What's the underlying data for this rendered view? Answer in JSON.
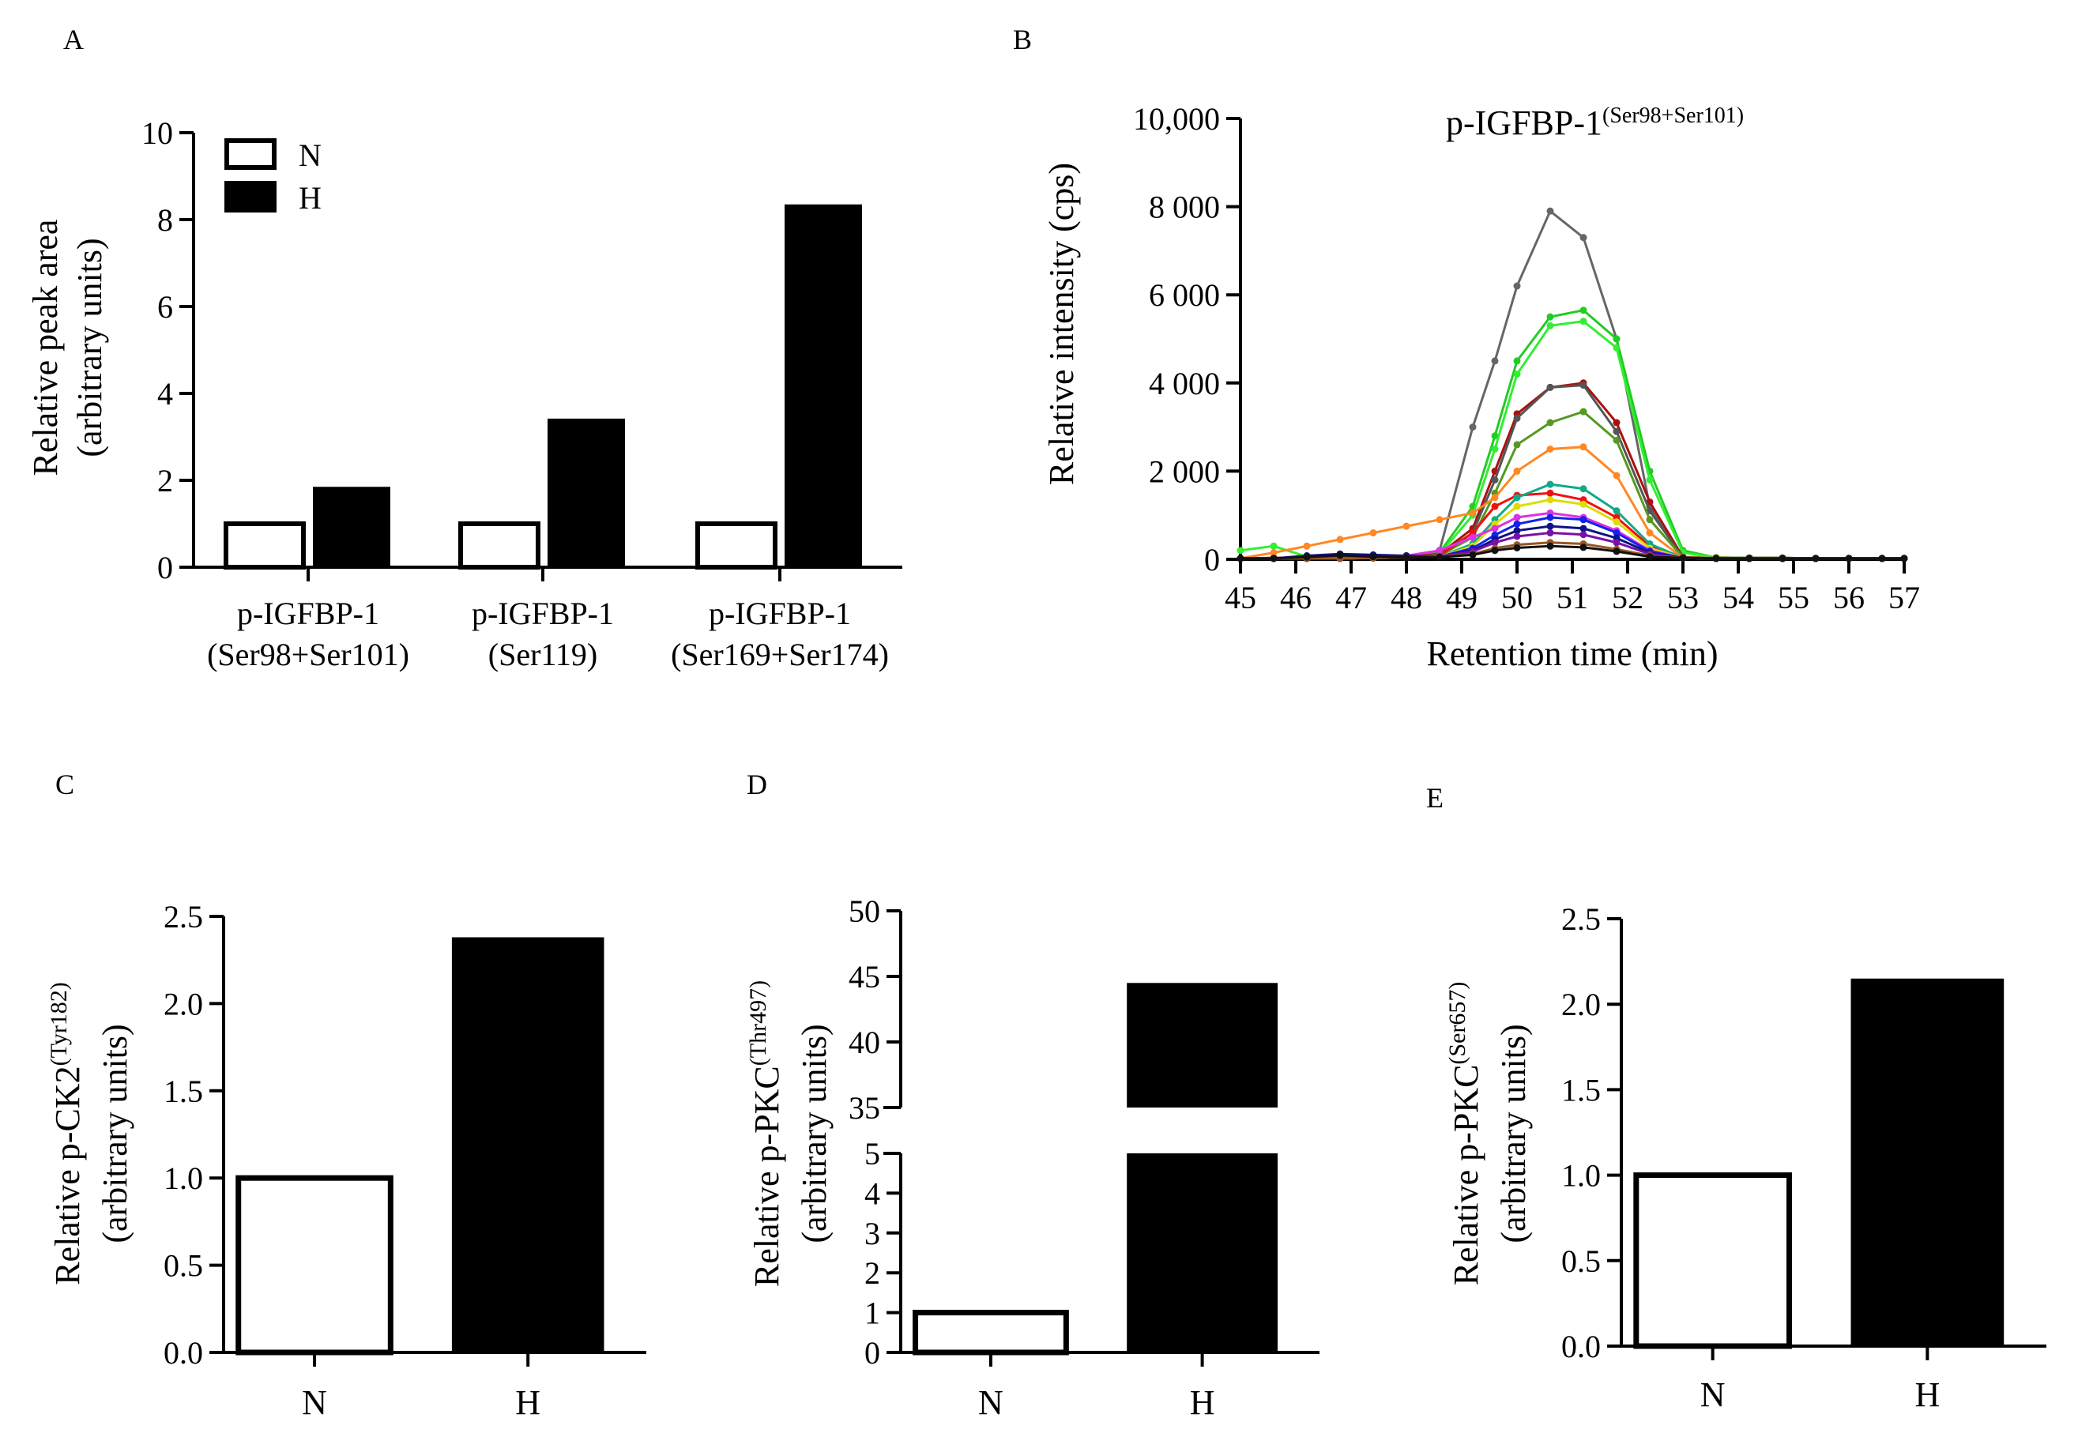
{
  "figure": {
    "panels": {
      "A": "A",
      "B": "B",
      "C": "C",
      "D": "D",
      "E": "E"
    }
  },
  "chart_data": [
    {
      "panel": "A",
      "type": "bar",
      "title": "",
      "categories": [
        [
          "p-IGFBP-1",
          "(Ser98+Ser101)"
        ],
        [
          "p-IGFBP-1",
          "(Ser119)"
        ],
        [
          "p-IGFBP-1",
          "(Ser169+Ser174)"
        ]
      ],
      "series": [
        {
          "name": "N",
          "values": [
            1.0,
            1.0,
            1.0
          ],
          "fill": "#ffffff"
        },
        {
          "name": "H",
          "values": [
            1.85,
            3.42,
            8.35
          ],
          "fill": "#000000"
        }
      ],
      "ylabel": [
        "Relative peak area",
        "(arbitrary units)"
      ],
      "xlabel": "",
      "ylim": [
        0,
        10
      ],
      "yticks": [
        "0",
        "2",
        "4",
        "6",
        "8",
        "10"
      ],
      "legend": "top-left"
    },
    {
      "panel": "B",
      "type": "line",
      "title": "p-IGFBP-1",
      "title_sup": "(Ser98+Ser101)",
      "xlabel": "Retention time (min)",
      "ylabel": "Relative intensity (cps)",
      "xlim": [
        45,
        57
      ],
      "ylim": [
        0,
        10000
      ],
      "xticks": [
        "45",
        "46",
        "47",
        "48",
        "49",
        "50",
        "51",
        "52",
        "53",
        "54",
        "55",
        "56",
        "57"
      ],
      "yticks": [
        "0",
        "2 000",
        "4 000",
        "6 000",
        "8 000",
        "10,000"
      ],
      "x": [
        45,
        45.6,
        46.2,
        46.8,
        47.4,
        48,
        48.6,
        49.2,
        49.6,
        50,
        50.6,
        51.2,
        51.8,
        52.4,
        53,
        53.6,
        54.2,
        54.8,
        55.4,
        56,
        56.6,
        57
      ],
      "series": [
        {
          "name": "trace-gray",
          "color": "#666666",
          "values": [
            20,
            30,
            40,
            60,
            50,
            60,
            200,
            3000,
            4500,
            6200,
            7900,
            7300,
            5000,
            1200,
            50,
            40,
            30,
            30,
            20,
            20,
            20,
            20
          ]
        },
        {
          "name": "trace-green-1",
          "color": "#22cc22",
          "values": [
            20,
            20,
            30,
            40,
            40,
            60,
            150,
            1200,
            2800,
            4500,
            5500,
            5650,
            5000,
            2000,
            200,
            40,
            30,
            30,
            20,
            20,
            20,
            20
          ]
        },
        {
          "name": "trace-green-2",
          "color": "#33ee33",
          "values": [
            200,
            300,
            60,
            40,
            40,
            60,
            120,
            1000,
            2500,
            4200,
            5300,
            5400,
            4800,
            1800,
            150,
            40,
            30,
            30,
            20,
            20,
            20,
            20
          ]
        },
        {
          "name": "trace-darkred",
          "color": "#aa1111",
          "values": [
            20,
            30,
            40,
            40,
            40,
            60,
            120,
            700,
            2000,
            3300,
            3900,
            4000,
            3100,
            1300,
            50,
            30,
            30,
            30,
            20,
            20,
            20,
            20
          ]
        },
        {
          "name": "trace-darkgray",
          "color": "#555555",
          "values": [
            20,
            20,
            30,
            30,
            30,
            50,
            100,
            600,
            1800,
            3200,
            3900,
            3950,
            2900,
            1100,
            40,
            30,
            30,
            20,
            20,
            20,
            20,
            20
          ]
        },
        {
          "name": "trace-olive",
          "color": "#559922",
          "values": [
            20,
            20,
            20,
            30,
            30,
            40,
            90,
            500,
            1500,
            2600,
            3100,
            3350,
            2700,
            900,
            40,
            30,
            30,
            20,
            20,
            20,
            20,
            20
          ]
        },
        {
          "name": "trace-orange",
          "color": "#ff8822",
          "values": [
            20,
            150,
            300,
            450,
            600,
            750,
            900,
            1050,
            1400,
            2000,
            2500,
            2550,
            1900,
            600,
            30,
            30,
            20,
            20,
            20,
            20,
            20,
            20
          ]
        },
        {
          "name": "trace-red",
          "color": "#ee1111",
          "values": [
            20,
            20,
            20,
            20,
            30,
            40,
            80,
            600,
            1200,
            1450,
            1500,
            1350,
            950,
            300,
            30,
            20,
            20,
            20,
            20,
            20,
            20,
            20
          ]
        },
        {
          "name": "trace-teal",
          "color": "#11aa88",
          "values": [
            20,
            20,
            20,
            20,
            30,
            40,
            60,
            350,
            900,
            1400,
            1700,
            1600,
            1100,
            350,
            30,
            20,
            20,
            20,
            20,
            20,
            20,
            20
          ]
        },
        {
          "name": "trace-yellow",
          "color": "#dddd00",
          "values": [
            20,
            20,
            20,
            20,
            30,
            40,
            60,
            300,
            800,
            1200,
            1350,
            1250,
            850,
            250,
            30,
            20,
            20,
            20,
            20,
            20,
            20,
            20
          ]
        },
        {
          "name": "trace-magenta",
          "color": "#dd33dd",
          "values": [
            20,
            20,
            20,
            20,
            30,
            80,
            200,
            500,
            700,
            950,
            1050,
            950,
            650,
            200,
            30,
            20,
            20,
            20,
            20,
            20,
            20,
            20
          ]
        },
        {
          "name": "trace-blue",
          "color": "#1122ee",
          "values": [
            20,
            20,
            20,
            20,
            30,
            40,
            60,
            250,
            550,
            800,
            950,
            900,
            600,
            180,
            30,
            20,
            20,
            20,
            20,
            20,
            20,
            20
          ]
        },
        {
          "name": "trace-navy",
          "color": "#111188",
          "values": [
            20,
            20,
            80,
            120,
            100,
            80,
            60,
            200,
            450,
            650,
            750,
            700,
            480,
            150,
            30,
            20,
            20,
            20,
            20,
            20,
            20,
            20
          ]
        },
        {
          "name": "trace-purple",
          "color": "#7711aa",
          "values": [
            20,
            20,
            20,
            20,
            30,
            40,
            60,
            180,
            380,
            520,
            600,
            560,
            380,
            120,
            30,
            20,
            20,
            20,
            20,
            20,
            20,
            20
          ]
        },
        {
          "name": "trace-brown",
          "color": "#995522",
          "values": [
            20,
            20,
            20,
            20,
            30,
            40,
            60,
            120,
            250,
            330,
            380,
            350,
            230,
            80,
            30,
            20,
            20,
            20,
            20,
            20,
            20,
            20
          ]
        },
        {
          "name": "trace-black",
          "color": "#111111",
          "values": [
            20,
            20,
            50,
            90,
            60,
            40,
            50,
            100,
            200,
            260,
            300,
            270,
            180,
            60,
            30,
            20,
            20,
            20,
            20,
            20,
            20,
            20
          ]
        }
      ]
    },
    {
      "panel": "C",
      "type": "bar",
      "categories": [
        "N",
        "H"
      ],
      "values": [
        1.0,
        2.38
      ],
      "fills": [
        "#ffffff",
        "#000000"
      ],
      "ylabel_pre": "Relative p-CK2",
      "ylabel_sup": "(Tyr182)",
      "ylabel2": "(arbitrary units)",
      "ylim": [
        0,
        2.5
      ],
      "yticks": [
        "0.0",
        "0.5",
        "1.0",
        "1.5",
        "2.0",
        "2.5"
      ]
    },
    {
      "panel": "D",
      "type": "bar",
      "categories": [
        "N",
        "H"
      ],
      "values": [
        1.0,
        44.5
      ],
      "fills": [
        "#ffffff",
        "#000000"
      ],
      "ylabel_pre": "Relative p-PKC",
      "ylabel_sup": "(Thr497)",
      "ylabel2": "(arbitrary units)",
      "axis_break": {
        "lower": [
          0,
          5
        ],
        "upper": [
          35,
          50
        ]
      },
      "yticks_lower": [
        "0",
        "1",
        "2",
        "3",
        "4",
        "5"
      ],
      "yticks_upper": [
        "35",
        "40",
        "45",
        "50"
      ]
    },
    {
      "panel": "E",
      "type": "bar",
      "categories": [
        "N",
        "H"
      ],
      "values": [
        1.0,
        2.15
      ],
      "fills": [
        "#ffffff",
        "#000000"
      ],
      "ylabel_pre": "Relative p-PKC",
      "ylabel_sup": "(Ser657)",
      "ylabel2": "(arbitrary units)",
      "ylim": [
        0,
        2.5
      ],
      "yticks": [
        "0.0",
        "0.5",
        "1.0",
        "1.5",
        "2.0",
        "2.5"
      ]
    }
  ]
}
